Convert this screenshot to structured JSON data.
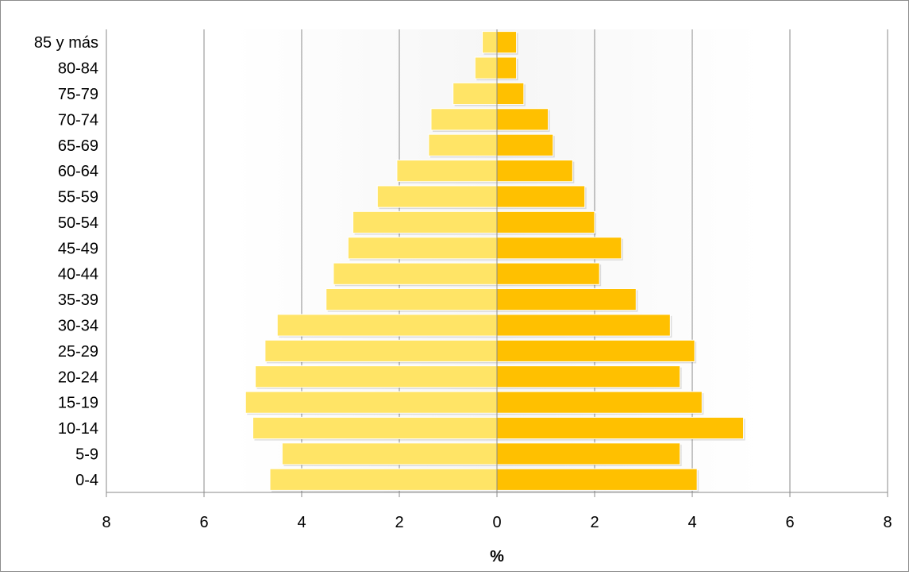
{
  "chart_data": {
    "type": "bar",
    "orientation": "horizontal",
    "subtype": "population-pyramid",
    "categories": [
      "0-4",
      "5-9",
      "10-14",
      "15-19",
      "20-24",
      "25-29",
      "30-34",
      "35-39",
      "40-44",
      "45-49",
      "50-54",
      "55-59",
      "60-64",
      "65-69",
      "70-74",
      "75-79",
      "80-84",
      "85 y más"
    ],
    "series": [
      {
        "color": "#ffe466",
        "side": "left",
        "values": [
          4.65,
          4.4,
          5.0,
          5.15,
          4.95,
          4.75,
          4.5,
          3.5,
          3.35,
          3.05,
          2.95,
          2.45,
          2.05,
          1.4,
          1.35,
          0.9,
          0.45,
          0.3
        ]
      },
      {
        "color": "#ffc000",
        "side": "right",
        "values": [
          4.1,
          3.75,
          5.05,
          4.2,
          3.75,
          4.05,
          3.55,
          2.85,
          2.1,
          2.55,
          2.0,
          1.8,
          1.55,
          1.15,
          1.05,
          0.55,
          0.4,
          0.4
        ]
      }
    ],
    "xlabel": "%",
    "xlim": [
      -8,
      8
    ],
    "xticks": [
      -8,
      -6,
      -4,
      -2,
      0,
      2,
      4,
      6,
      8
    ],
    "xtick_labels": [
      "8",
      "6",
      "4",
      "2",
      "0",
      "2",
      "4",
      "6",
      "8"
    ],
    "grid": "vertical"
  }
}
